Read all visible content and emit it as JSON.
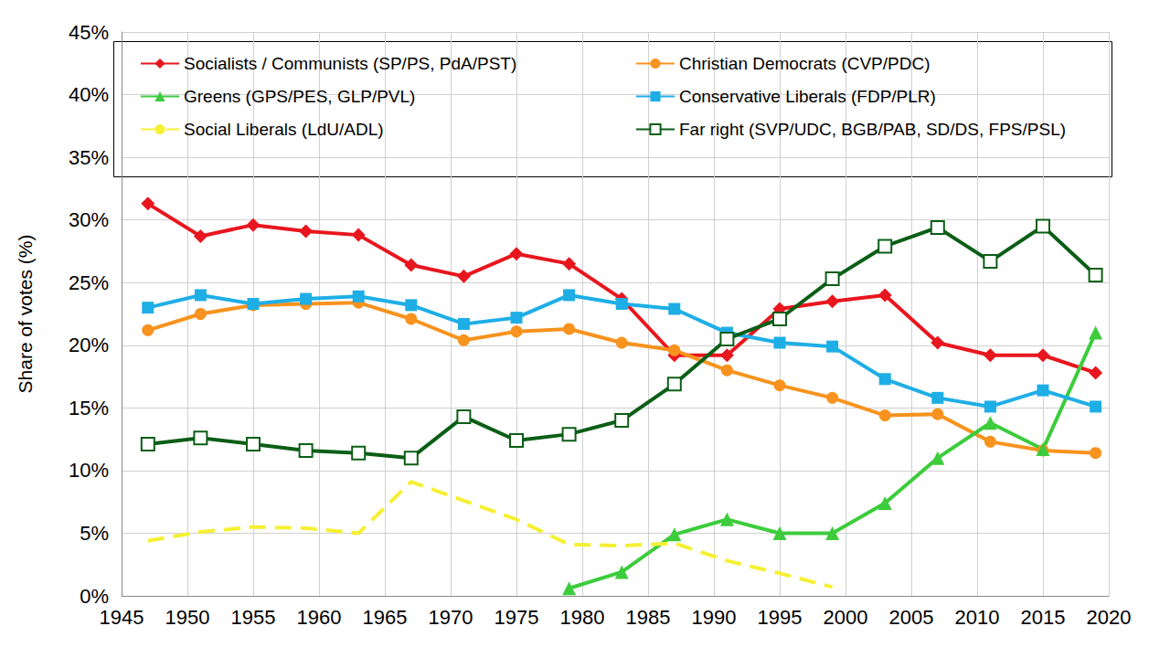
{
  "chart_data": {
    "type": "line",
    "y_label": "Share of votes (%)",
    "x": [
      1947,
      1951,
      1955,
      1959,
      1963,
      1967,
      1971,
      1975,
      1979,
      1983,
      1987,
      1991,
      1995,
      1999,
      2003,
      2007,
      2011,
      2015,
      2019
    ],
    "xlim": [
      1945,
      2020
    ],
    "xticks": [
      1945,
      1950,
      1955,
      1960,
      1965,
      1970,
      1975,
      1980,
      1985,
      1990,
      1995,
      2000,
      2005,
      2010,
      2015,
      2020
    ],
    "ylim": [
      0,
      45
    ],
    "yticks": [
      {
        "value": 0,
        "label": "0%"
      },
      {
        "value": 5,
        "label": "5%"
      },
      {
        "value": 10,
        "label": "10%"
      },
      {
        "value": 15,
        "label": "15%"
      },
      {
        "value": 20,
        "label": "20%"
      },
      {
        "value": 25,
        "label": "25%"
      },
      {
        "value": 30,
        "label": "30%"
      },
      {
        "value": 35,
        "label": "35%"
      },
      {
        "value": 40,
        "label": "40%"
      },
      {
        "value": 45,
        "label": "45%"
      }
    ],
    "grid": true,
    "legend": "top",
    "series": [
      {
        "name": "Socialists / Communists (SP/PS, PdA/PST)",
        "color": "#e8161e",
        "marker": "diamond",
        "line_style": "solid",
        "values": [
          31.3,
          28.7,
          29.6,
          29.1,
          28.8,
          26.4,
          25.5,
          27.3,
          26.5,
          23.7,
          19.2,
          19.2,
          22.9,
          23.5,
          24.0,
          20.2,
          19.2,
          19.2,
          17.8
        ]
      },
      {
        "name": "Christian Democrats (CVP/PDC)",
        "color": "#f7931e",
        "marker": "circle",
        "line_style": "solid",
        "values": [
          21.2,
          22.5,
          23.2,
          23.3,
          23.4,
          22.1,
          20.4,
          21.1,
          21.3,
          20.2,
          19.6,
          18.0,
          16.8,
          15.8,
          14.4,
          14.5,
          12.3,
          11.6,
          11.4
        ]
      },
      {
        "name": "Greens (GPS/PES, GLP/PVL)",
        "color": "#3ccc3c",
        "marker": "triangle",
        "line_style": "solid",
        "values": [
          null,
          null,
          null,
          null,
          null,
          null,
          null,
          null,
          0.6,
          1.9,
          4.9,
          6.1,
          5.0,
          5.0,
          7.4,
          11.0,
          13.8,
          11.7,
          21.0
        ]
      },
      {
        "name": "Conservative Liberals (FDP/PLR)",
        "color": "#1eaee6",
        "marker": "square",
        "line_style": "solid",
        "values": [
          23.0,
          24.0,
          23.3,
          23.7,
          23.9,
          23.2,
          21.7,
          22.2,
          24.0,
          23.3,
          22.9,
          21.0,
          20.2,
          19.9,
          17.3,
          15.8,
          15.1,
          16.4,
          15.1
        ]
      },
      {
        "name": "Social Liberals (LdU/ADL)",
        "color": "#f5f032",
        "marker": "none",
        "line_style": "dashed",
        "values": [
          4.4,
          5.1,
          5.5,
          5.4,
          5.0,
          9.1,
          7.6,
          6.1,
          4.1,
          4.0,
          4.2,
          2.8,
          1.8,
          0.7,
          null,
          null,
          null,
          null,
          null
        ]
      },
      {
        "name": "Far right (SVP/UDC, BGB/PAB, SD/DS, FPS/PSL)",
        "color": "#0b5e16",
        "marker": "square_open",
        "line_style": "solid",
        "values": [
          12.1,
          12.6,
          12.1,
          11.6,
          11.4,
          11.0,
          14.3,
          12.4,
          12.9,
          14.0,
          16.9,
          20.5,
          22.1,
          25.3,
          27.9,
          29.4,
          26.7,
          29.5,
          25.6
        ]
      }
    ]
  }
}
